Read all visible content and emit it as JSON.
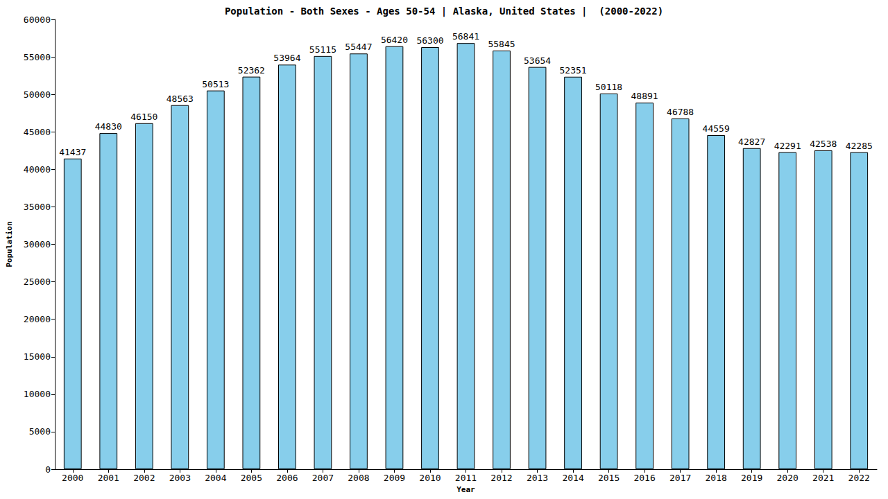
{
  "chart_data": {
    "type": "bar",
    "title": "Population - Both Sexes - Ages 50-54 | Alaska, United States |  (2000-2022)",
    "xlabel": "Year",
    "ylabel": "Population",
    "categories": [
      "2000",
      "2001",
      "2002",
      "2003",
      "2004",
      "2005",
      "2006",
      "2007",
      "2008",
      "2009",
      "2010",
      "2011",
      "2012",
      "2013",
      "2014",
      "2015",
      "2016",
      "2017",
      "2018",
      "2019",
      "2020",
      "2021",
      "2022"
    ],
    "values": [
      41437,
      44830,
      46150,
      48563,
      50513,
      52362,
      53964,
      55115,
      55447,
      56420,
      56300,
      56841,
      55845,
      53654,
      52351,
      50118,
      48891,
      46788,
      44559,
      42827,
      42291,
      42538,
      42285
    ],
    "color": "#87ceeb",
    "ylim": [
      0,
      60000
    ],
    "yticks": [
      0,
      5000,
      10000,
      15000,
      20000,
      25000,
      30000,
      35000,
      40000,
      45000,
      50000,
      55000,
      60000
    ],
    "grid": false,
    "data_labels": true
  }
}
